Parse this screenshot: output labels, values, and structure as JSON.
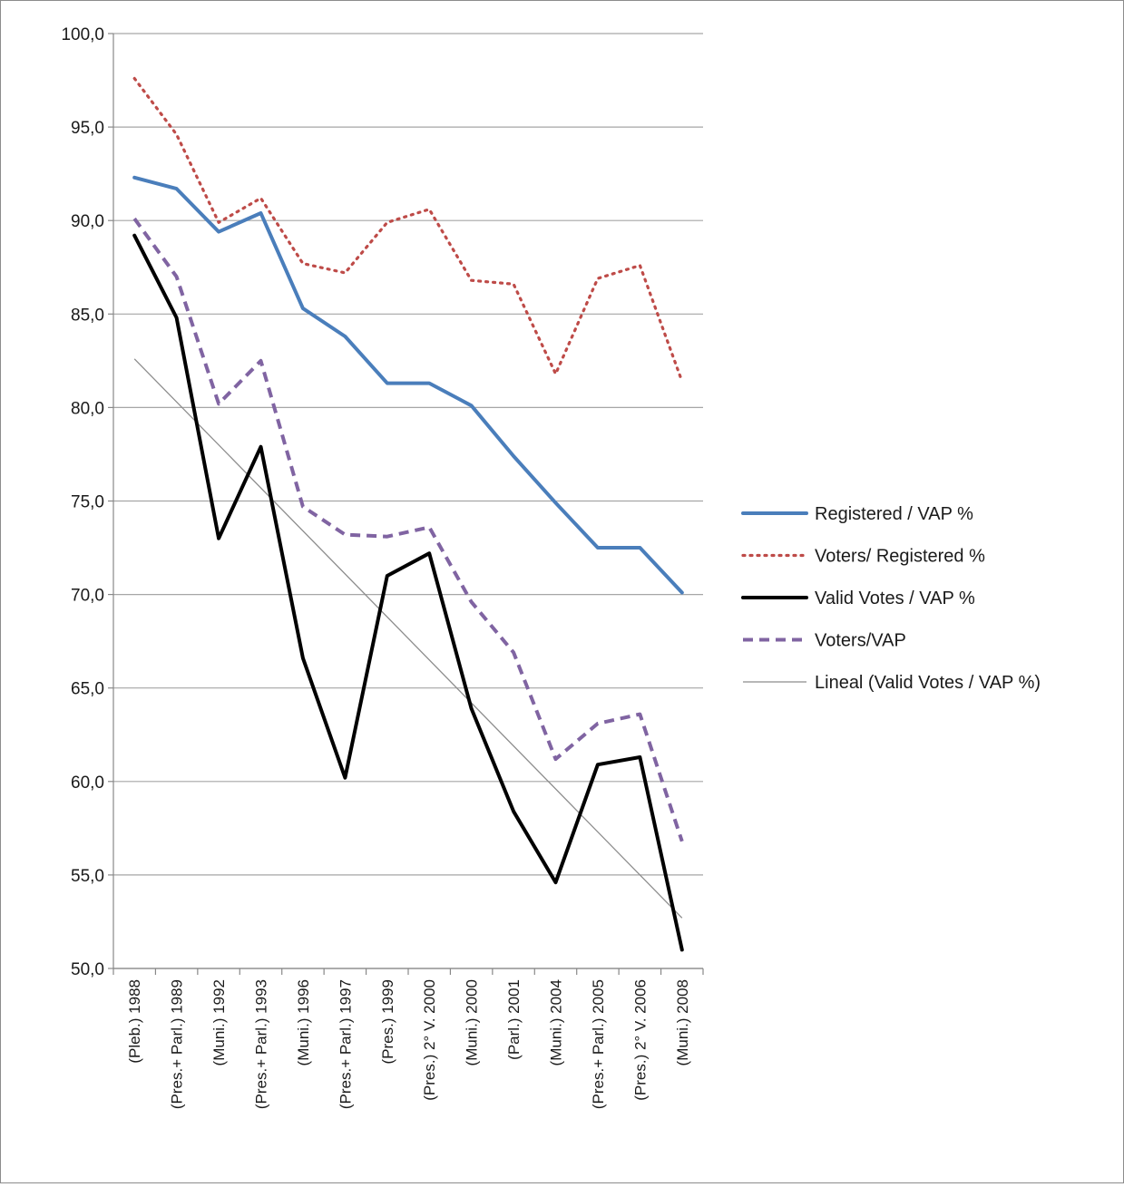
{
  "chart_data": {
    "type": "line",
    "title": "",
    "xlabel": "",
    "ylabel": "",
    "ylim": [
      50,
      100
    ],
    "y_ticks": [
      "100,0",
      "95,0",
      "90,0",
      "85,0",
      "80,0",
      "75,0",
      "70,0",
      "65,0",
      "60,0",
      "55,0",
      "50,0"
    ],
    "grid": true,
    "legend_position": "right",
    "categories": [
      "(Pleb.) 1988",
      "(Pres.+ Parl.) 1989",
      "(Muni.) 1992",
      "(Pres.+ Parl.) 1993",
      "(Muni.) 1996",
      "(Pres.+ Parl.) 1997",
      "(Pres.) 1999",
      "(Pres.) 2° V. 2000",
      "(Muni.) 2000",
      "(Parl.) 2001",
      "(Muni.) 2004",
      "(Pres.+ Parl.) 2005",
      "(Pres.) 2° V. 2006",
      "(Muni.) 2008"
    ],
    "series": [
      {
        "name": "Registered / VAP %",
        "color": "#4a7ebb",
        "style": "solid",
        "values": [
          92.3,
          91.7,
          89.4,
          90.4,
          85.3,
          83.8,
          81.3,
          81.3,
          80.1,
          77.4,
          74.9,
          72.5,
          72.5,
          70.1
        ]
      },
      {
        "name": "Voters/ Registered %",
        "color": "#be4b48",
        "style": "dotted",
        "values": [
          97.6,
          94.6,
          89.9,
          91.2,
          87.7,
          87.2,
          89.9,
          90.6,
          86.8,
          86.6,
          81.8,
          86.9,
          87.6,
          81.4
        ]
      },
      {
        "name": "Valid Votes / VAP %",
        "color": "#000000",
        "style": "solid",
        "values": [
          89.2,
          84.8,
          73.0,
          77.9,
          66.6,
          60.2,
          71.0,
          72.2,
          63.9,
          58.4,
          54.6,
          60.9,
          61.3,
          51.0
        ]
      },
      {
        "name": "Voters/VAP",
        "color": "#8064a2",
        "style": "dashed",
        "values": [
          90.1,
          87.0,
          80.2,
          82.5,
          74.7,
          73.2,
          73.1,
          73.6,
          69.6,
          66.9,
          61.2,
          63.1,
          63.6,
          56.8
        ]
      },
      {
        "name": "Lineal (Valid Votes / VAP %)",
        "color": "#8c8c8c",
        "style": "trendline",
        "values": [
          82.6,
          80.3,
          78.0,
          75.7,
          73.4,
          71.1,
          68.8,
          66.5,
          64.2,
          61.9,
          59.6,
          57.3,
          55.0,
          52.7
        ]
      }
    ]
  }
}
